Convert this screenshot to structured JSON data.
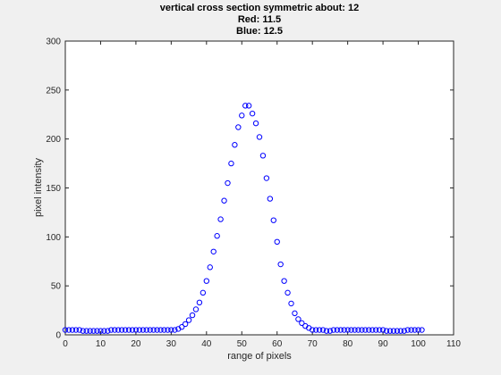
{
  "chart_data": {
    "type": "scatter",
    "title": [
      "vertical cross section symmetric about: 12",
      "Red: 11.5",
      "Blue: 12.5"
    ],
    "xlabel": "range of pixels",
    "ylabel": "pixel intensity",
    "xlim": [
      0,
      110
    ],
    "ylim": [
      0,
      300
    ],
    "xticks": [
      0,
      10,
      20,
      30,
      40,
      50,
      60,
      70,
      80,
      90,
      100,
      110
    ],
    "yticks": [
      0,
      50,
      100,
      150,
      200,
      250,
      300
    ],
    "grid": false,
    "marker": "circle",
    "series": [
      {
        "color": "#0000ff",
        "x": [
          0,
          1,
          2,
          3,
          4,
          5,
          6,
          7,
          8,
          9,
          10,
          11,
          12,
          13,
          14,
          15,
          16,
          17,
          18,
          19,
          20,
          21,
          22,
          23,
          24,
          25,
          26,
          27,
          28,
          29,
          30,
          31,
          32,
          33,
          34,
          35,
          36,
          37,
          38,
          39,
          40,
          41,
          42,
          43,
          44,
          45,
          46,
          47,
          48,
          49,
          50,
          51,
          52,
          53,
          54,
          55,
          56,
          57,
          58,
          59,
          60,
          61,
          62,
          63,
          64,
          65,
          66,
          67,
          68,
          69,
          70,
          71,
          72,
          73,
          74,
          75,
          76,
          77,
          78,
          79,
          80,
          81,
          82,
          83,
          84,
          85,
          86,
          87,
          88,
          89,
          90,
          91,
          92,
          93,
          94,
          95,
          96,
          97,
          98,
          99,
          100,
          101
        ],
        "y": [
          5,
          5,
          5,
          5,
          5,
          4,
          4,
          4,
          4,
          4,
          4,
          4,
          4,
          5,
          5,
          5,
          5,
          5,
          5,
          5,
          5,
          5,
          5,
          5,
          5,
          5,
          5,
          5,
          5,
          5,
          5,
          5,
          6,
          8,
          11,
          15,
          20,
          26,
          33,
          43,
          55,
          69,
          85,
          101,
          118,
          137,
          155,
          175,
          194,
          212,
          224,
          234,
          234,
          226,
          216,
          202,
          183,
          160,
          139,
          117,
          95,
          72,
          55,
          43,
          32,
          22,
          16,
          12,
          9,
          7,
          5,
          5,
          5,
          5,
          4,
          4,
          5,
          5,
          5,
          5,
          5,
          5,
          5,
          5,
          5,
          5,
          5,
          5,
          5,
          5,
          5,
          4,
          4,
          4,
          4,
          4,
          4,
          5,
          5,
          5,
          5,
          5
        ]
      }
    ]
  }
}
